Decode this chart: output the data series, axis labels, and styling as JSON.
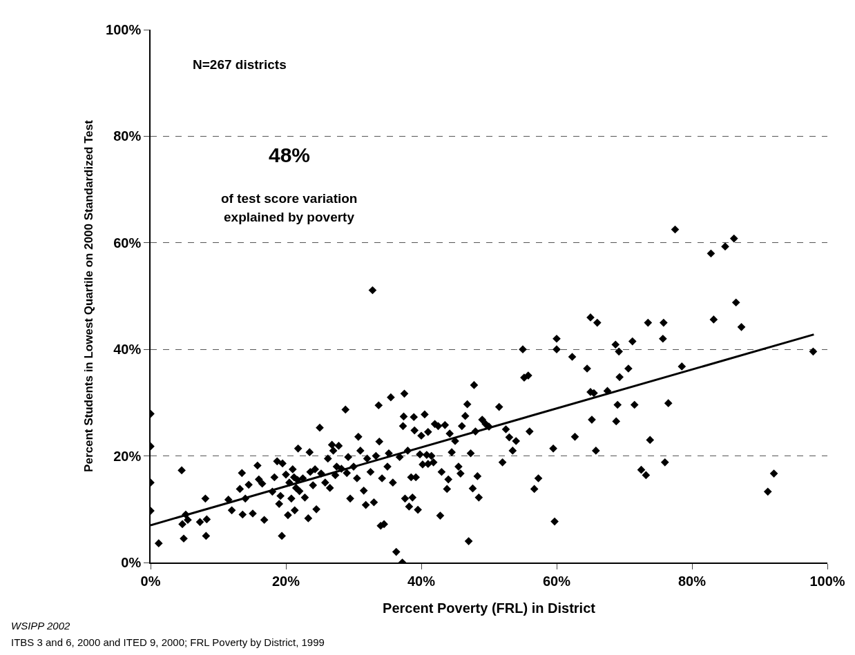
{
  "chart_data": {
    "type": "scatter",
    "xlabel": "Percent Poverty (FRL) in District",
    "ylabel": "Percent Students in Lowest Quartile on 2000 Standardized Test",
    "annotations": [
      "N=267 districts",
      "48%",
      "of test score variation",
      "explained by poverty",
      "WSIPP 2002",
      "ITBS 3 and 6, 2000 and ITED 9, 2000; FRL Poverty by District, 1999"
    ],
    "xlim": [
      0,
      100
    ],
    "ylim": [
      0,
      100
    ],
    "xticks": [
      {
        "value": 0,
        "label": "0%"
      },
      {
        "value": 20,
        "label": "20%"
      },
      {
        "value": 40,
        "label": "40%"
      },
      {
        "value": 60,
        "label": "60%"
      },
      {
        "value": 80,
        "label": "80%"
      },
      {
        "value": 100,
        "label": "100%"
      }
    ],
    "yticks": [
      {
        "value": 0,
        "label": "0%"
      },
      {
        "value": 20,
        "label": "20%"
      },
      {
        "value": 40,
        "label": "40%"
      },
      {
        "value": 60,
        "label": "60%"
      },
      {
        "value": 80,
        "label": "80%"
      },
      {
        "value": 100,
        "label": "100%"
      }
    ],
    "grid": "y",
    "marker": "diamond",
    "series": [
      {
        "color": "#000000",
        "x": [
          0,
          0,
          0,
          0,
          1.2,
          4.6,
          4.7,
          4.9,
          5.2,
          5.5,
          7.3,
          8.1,
          8.2,
          8.3,
          11.5,
          12,
          13.2,
          13.5,
          13.6,
          14,
          14.5,
          15.1,
          15.8,
          16,
          16.5,
          16.8,
          18,
          18.3,
          18.7,
          19,
          19.2,
          19.4,
          19.5,
          20,
          20.3,
          20.5,
          20.8,
          21,
          21.2,
          21.3,
          21.5,
          21.7,
          21.8,
          22,
          22.5,
          22.8,
          23.3,
          23.5,
          23.6,
          24,
          24.3,
          24.5,
          25,
          25.2,
          25.8,
          26.2,
          26.5,
          26.8,
          27,
          27.3,
          27.5,
          27.8,
          28.2,
          28.8,
          29,
          29.2,
          29.5,
          30,
          30.5,
          30.7,
          31,
          31.5,
          31.8,
          32,
          32.5,
          32.8,
          33,
          33.3,
          33.7,
          33.8,
          34,
          34.2,
          34.5,
          35,
          35.2,
          35.5,
          35.8,
          36.3,
          36.8,
          37.2,
          37.3,
          37.4,
          37.5,
          37.6,
          38,
          38.2,
          38.5,
          38.7,
          38.9,
          39,
          39.2,
          39.5,
          39.8,
          40,
          40.2,
          40.5,
          40.8,
          41,
          41,
          41.5,
          41.8,
          42,
          42.5,
          42.8,
          43,
          43.5,
          43.8,
          44,
          44.2,
          44.5,
          45,
          45.5,
          45.8,
          46,
          46.5,
          46.8,
          47,
          47.3,
          47.6,
          47.8,
          48,
          48.3,
          48.5,
          49,
          49.5,
          50,
          51.5,
          52,
          52.5,
          53,
          53.5,
          54,
          55,
          55.2,
          55.8,
          56,
          56.7,
          57.3,
          59.5,
          59.7,
          60,
          60,
          62.3,
          62.7,
          64.5,
          65,
          65,
          65.2,
          65.5,
          65.8,
          66,
          67.5,
          68.7,
          68.8,
          69,
          69.2,
          69.3,
          70.6,
          71.2,
          71.5,
          72.5,
          73.2,
          73.5,
          73.8,
          75.7,
          75.8,
          76,
          76.5,
          77.5,
          78.5,
          82.8,
          83.2,
          84.9,
          86.2,
          86.5,
          87.3,
          91.2,
          92.1,
          97.9
        ],
        "values": [
          27.9,
          21.8,
          15,
          9.7,
          3.6,
          17.3,
          7.2,
          4.5,
          9,
          8,
          7.6,
          12,
          5,
          8.1,
          11.8,
          9.8,
          13.8,
          16.8,
          9,
          12,
          14.6,
          9.2,
          18.2,
          15.6,
          14.8,
          8,
          13.3,
          16,
          19,
          11,
          12.5,
          5,
          18.6,
          16.5,
          8.9,
          15,
          12,
          17.5,
          16,
          9.8,
          14,
          15.5,
          21.4,
          13.4,
          15.8,
          12.2,
          8.3,
          20.7,
          17,
          14.5,
          17.5,
          10,
          25.3,
          16.7,
          15,
          19.5,
          14,
          22.1,
          21,
          16.4,
          18,
          21.9,
          17.6,
          28.7,
          16.8,
          19.8,
          12,
          18,
          15.8,
          23.6,
          21,
          13.5,
          10.8,
          19.5,
          17,
          51.1,
          11.3,
          20,
          29.5,
          22.7,
          6.9,
          15.8,
          7.2,
          18,
          20.5,
          31,
          15,
          2,
          19.8,
          0,
          25.6,
          27.4,
          31.7,
          12,
          21,
          10.5,
          16,
          12.2,
          27.3,
          24.8,
          16,
          9.9,
          20.3,
          23.8,
          18.4,
          27.8,
          20.2,
          24.5,
          18.5,
          20,
          18.8,
          26,
          25.6,
          8.8,
          17,
          25.8,
          13.8,
          15.6,
          24.2,
          20.7,
          22.8,
          18,
          16.7,
          25.6,
          27.5,
          29.7,
          4,
          20.5,
          13.9,
          33.3,
          24.6,
          16.2,
          12.2,
          26.8,
          26,
          25.5,
          29.2,
          18.8,
          25,
          23.5,
          21,
          22.8,
          40,
          34.7,
          35.1,
          24.6,
          13.8,
          15.8,
          21.4,
          7.7,
          42,
          40,
          38.6,
          23.6,
          36.4,
          46,
          32,
          26.8,
          31.8,
          21,
          45,
          32.2,
          40.9,
          26.5,
          29.6,
          39.6,
          34.8,
          36.4,
          41.5,
          29.6,
          17.4,
          16.4,
          45,
          23,
          42,
          45,
          18.8,
          29.9,
          62.5,
          36.8,
          58,
          45.6,
          59.3,
          60.8,
          48.8,
          44.2,
          13.3,
          16.7,
          39.6
        ]
      },
      {
        "type": "line",
        "color": "#000000",
        "marker": "none",
        "line_style": "solid",
        "x": [
          0,
          98
        ],
        "values": [
          7,
          42.8
        ]
      }
    ]
  }
}
